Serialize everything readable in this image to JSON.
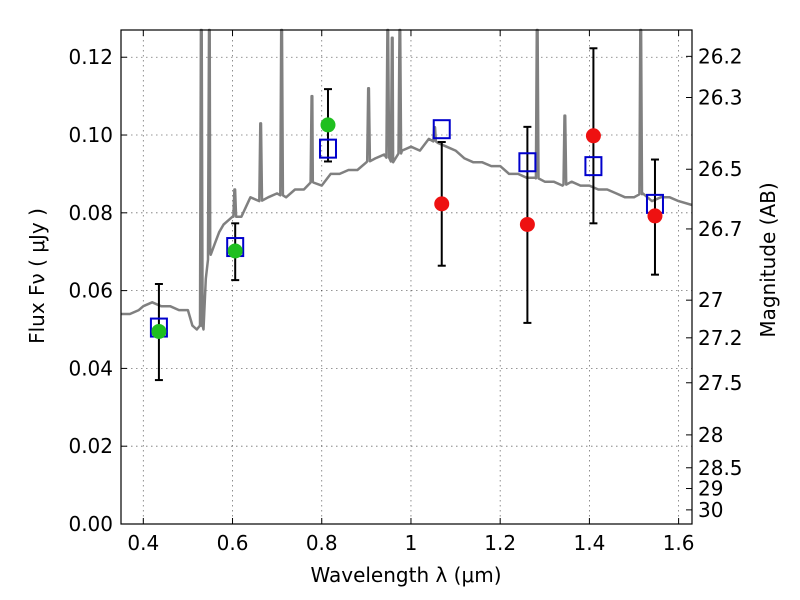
{
  "chart_data": {
    "type": "scatter",
    "xlabel": "Wavelength  λ (μm)",
    "ylabel": "Flux  Fν  ( μJy )",
    "y2label": "Magnitude (AB)",
    "xlim": [
      0.35,
      1.63
    ],
    "ylim": [
      0.0,
      0.127
    ],
    "grid": true,
    "x_ticks": [
      0.4,
      0.6,
      0.8,
      1.0,
      1.2,
      1.4,
      1.6
    ],
    "x_tick_labels": [
      "0.4",
      "0.6",
      "0.8",
      "1",
      "1.2",
      "1.4",
      "1.6"
    ],
    "y_ticks": [
      0.0,
      0.02,
      0.04,
      0.06,
      0.08,
      0.1,
      0.12
    ],
    "y_tick_labels": [
      "0.00",
      "0.02",
      "0.04",
      "0.06",
      "0.08",
      "0.10",
      "0.12"
    ],
    "mag_ticks": [
      "26.2",
      "26.3",
      "26.5",
      "26.7",
      "27",
      "27.2",
      "27.5",
      "28",
      "28.5",
      "29",
      "30"
    ],
    "colors": {
      "sed": "#808080",
      "error": "#000000",
      "detected": "#1fbf1f",
      "undetected": "#ee1111",
      "model": "#0000cc"
    },
    "sed_template": {
      "x": [
        0.35,
        0.37,
        0.39,
        0.4,
        0.42,
        0.44,
        0.46,
        0.48,
        0.5,
        0.51,
        0.52,
        0.53,
        0.535,
        0.54,
        0.545,
        0.55,
        0.56,
        0.57,
        0.58,
        0.59,
        0.6,
        0.62,
        0.64,
        0.66,
        0.68,
        0.7,
        0.72,
        0.74,
        0.76,
        0.78,
        0.8,
        0.82,
        0.84,
        0.86,
        0.88,
        0.9,
        0.92,
        0.94,
        0.96,
        0.98,
        1.0,
        1.02,
        1.04,
        1.06,
        1.08,
        1.1,
        1.12,
        1.14,
        1.16,
        1.18,
        1.2,
        1.22,
        1.24,
        1.26,
        1.28,
        1.3,
        1.32,
        1.34,
        1.36,
        1.38,
        1.4,
        1.42,
        1.44,
        1.46,
        1.48,
        1.5,
        1.52,
        1.54,
        1.56,
        1.58,
        1.6,
        1.63
      ],
      "y": [
        0.054,
        0.054,
        0.055,
        0.056,
        0.057,
        0.056,
        0.056,
        0.055,
        0.055,
        0.051,
        0.05,
        0.051,
        0.05,
        0.063,
        0.068,
        0.07,
        0.072,
        0.075,
        0.077,
        0.078,
        0.079,
        0.079,
        0.084,
        0.083,
        0.084,
        0.085,
        0.084,
        0.086,
        0.086,
        0.088,
        0.087,
        0.09,
        0.09,
        0.091,
        0.091,
        0.093,
        0.094,
        0.095,
        0.093,
        0.096,
        0.097,
        0.096,
        0.099,
        0.098,
        0.097,
        0.096,
        0.094,
        0.093,
        0.093,
        0.092,
        0.092,
        0.09,
        0.09,
        0.089,
        0.089,
        0.088,
        0.088,
        0.087,
        0.088,
        0.087,
        0.087,
        0.086,
        0.086,
        0.085,
        0.084,
        0.084,
        0.085,
        0.083,
        0.084,
        0.084,
        0.083,
        0.082
      ]
    },
    "emission_lines": [
      {
        "x": 0.53,
        "peak": 0.127
      },
      {
        "x": 0.548,
        "peak": 0.127
      },
      {
        "x": 0.605,
        "peak": 0.086
      },
      {
        "x": 0.663,
        "peak": 0.103
      },
      {
        "x": 0.71,
        "peak": 0.127
      },
      {
        "x": 0.778,
        "peak": 0.11
      },
      {
        "x": 0.905,
        "peak": 0.112
      },
      {
        "x": 0.948,
        "peak": 0.127
      },
      {
        "x": 0.958,
        "peak": 0.125
      },
      {
        "x": 0.975,
        "peak": 0.127
      },
      {
        "x": 1.053,
        "peak": 0.102
      },
      {
        "x": 1.283,
        "peak": 0.127
      },
      {
        "x": 1.345,
        "peak": 0.105
      },
      {
        "x": 1.515,
        "peak": 0.127
      }
    ],
    "photometry": [
      {
        "x": 0.435,
        "flux": 0.0495,
        "err_low": 0.037,
        "err_high": 0.0617,
        "model": 0.0505,
        "detected": true
      },
      {
        "x": 0.606,
        "flux": 0.0702,
        "err_low": 0.0627,
        "err_high": 0.0773,
        "model": 0.0712,
        "detected": true
      },
      {
        "x": 0.814,
        "flux": 0.1026,
        "err_low": 0.0932,
        "err_high": 0.1118,
        "model": 0.0965,
        "detected": true
      },
      {
        "x": 1.069,
        "flux": 0.0823,
        "err_low": 0.0664,
        "err_high": 0.0982,
        "model": 0.1015,
        "detected": false
      },
      {
        "x": 1.261,
        "flux": 0.077,
        "err_low": 0.0517,
        "err_high": 0.1021,
        "model": 0.093,
        "detected": false
      },
      {
        "x": 1.409,
        "flux": 0.0998,
        "err_low": 0.0773,
        "err_high": 0.1223,
        "model": 0.092,
        "detected": false
      },
      {
        "x": 1.547,
        "flux": 0.0792,
        "err_low": 0.0641,
        "err_high": 0.0937,
        "model": 0.0823,
        "detected": false
      }
    ]
  }
}
